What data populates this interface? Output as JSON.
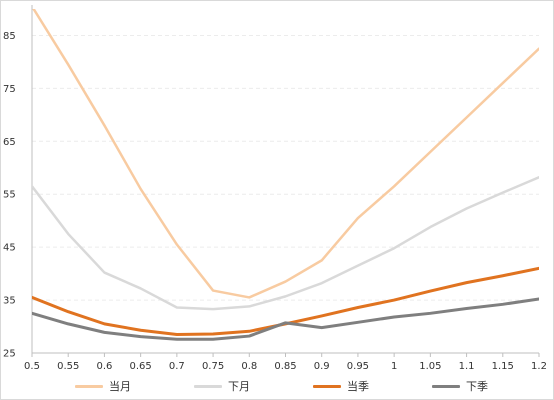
{
  "chart_data": {
    "type": "line",
    "title": "",
    "xlabel": "",
    "ylabel": "",
    "x": [
      0.5,
      0.55,
      0.6,
      0.65,
      0.7,
      0.75,
      0.8,
      0.85,
      0.9,
      0.95,
      1,
      1.05,
      1.1,
      1.15,
      1.2
    ],
    "x_tick_labels": [
      "0.5",
      "0.55",
      "0.6",
      "0.65",
      "0.7",
      "0.75",
      "0.8",
      "0.85",
      "0.9",
      "0.95",
      "1",
      "1.05",
      "1.1",
      "1.15",
      "1.2"
    ],
    "ylim": [
      25,
      90
    ],
    "y_ticks": [
      25,
      35,
      45,
      55,
      65,
      75,
      85
    ],
    "grid": true,
    "legend_position": "bottom",
    "series": [
      {
        "name": "当月",
        "color": "#f8cba1",
        "stroke_width": 2.5,
        "values": [
          90.5,
          79.5,
          68,
          56,
          45.5,
          36.8,
          35.5,
          38.5,
          42.5,
          50.5,
          56.5,
          63,
          69.5,
          76,
          82.5
        ]
      },
      {
        "name": "下月",
        "color": "#d9d9d9",
        "stroke_width": 2.5,
        "values": [
          56.5,
          47.5,
          40.2,
          37.2,
          33.6,
          33.3,
          33.8,
          35.7,
          38.2,
          41.5,
          44.8,
          48.8,
          52.3,
          55.3,
          58.2
        ]
      },
      {
        "name": "当季",
        "color": "#e07320",
        "stroke_width": 3,
        "values": [
          35.5,
          32.8,
          30.5,
          29.3,
          28.5,
          28.6,
          29.1,
          30.5,
          32,
          33.6,
          35,
          36.7,
          38.3,
          39.6,
          41
        ]
      },
      {
        "name": "下季",
        "color": "#7f7f7f",
        "stroke_width": 3,
        "values": [
          32.5,
          30.5,
          28.9,
          28.1,
          27.6,
          27.6,
          28.2,
          30.7,
          29.8,
          30.8,
          31.8,
          32.5,
          33.4,
          34.2,
          35.2
        ]
      }
    ]
  }
}
